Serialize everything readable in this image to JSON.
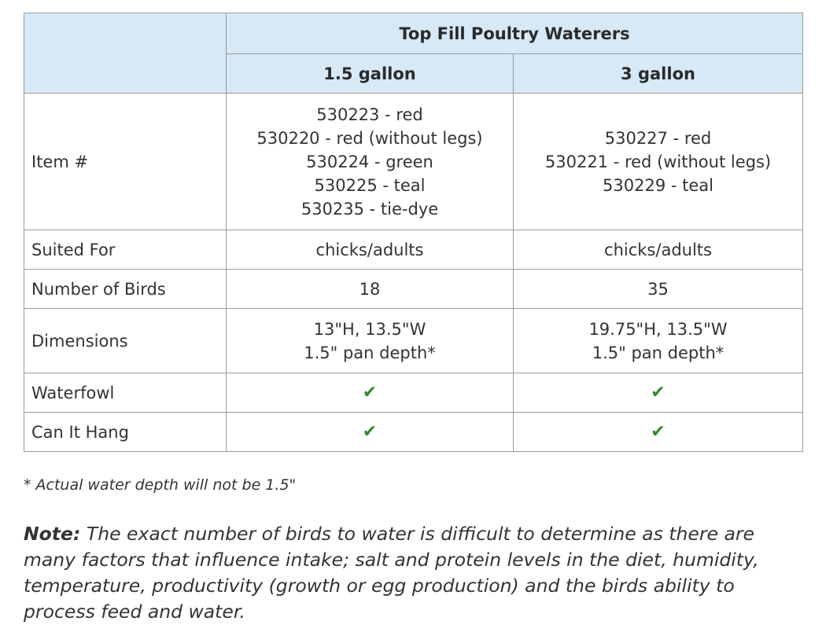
{
  "table": {
    "title": "Top Fill Poultry Waterers",
    "columns": [
      "1.5 gallon",
      "3 gallon"
    ],
    "rows": [
      {
        "label": "Item #",
        "cells": [
          [
            "530223 - red",
            "530220 - red (without legs)",
            "530224 - green",
            "530225 - teal",
            "530235 - tie-dye"
          ],
          [
            "530227 - red",
            "530221 - red (without legs)",
            "530229 - teal"
          ]
        ]
      },
      {
        "label": "Suited For",
        "cells": [
          [
            "chicks/adults"
          ],
          [
            "chicks/adults"
          ]
        ]
      },
      {
        "label": "Number of Birds",
        "cells": [
          [
            18
          ],
          [
            35
          ]
        ]
      },
      {
        "label": "Dimensions",
        "cells": [
          [
            "13\"H, 13.5\"W",
            "1.5\" pan depth*"
          ],
          [
            "19.75\"H, 13.5\"W",
            "1.5\" pan depth*"
          ]
        ]
      },
      {
        "label": "Waterfowl",
        "cells": [
          [
            "✔"
          ],
          [
            "✔"
          ]
        ]
      },
      {
        "label": "Can It Hang",
        "cells": [
          [
            "✔"
          ],
          [
            "✔"
          ]
        ]
      }
    ]
  },
  "footnote": "* Actual water depth will not be 1.5\"",
  "note": {
    "label": "Note:",
    "text": "The exact number of birds to water is difficult to determine as there are many factors that influence intake; salt and protein levels in the diet, humidity, temperature, productivity (growth or egg production) and the birds ability to process feed and water."
  }
}
